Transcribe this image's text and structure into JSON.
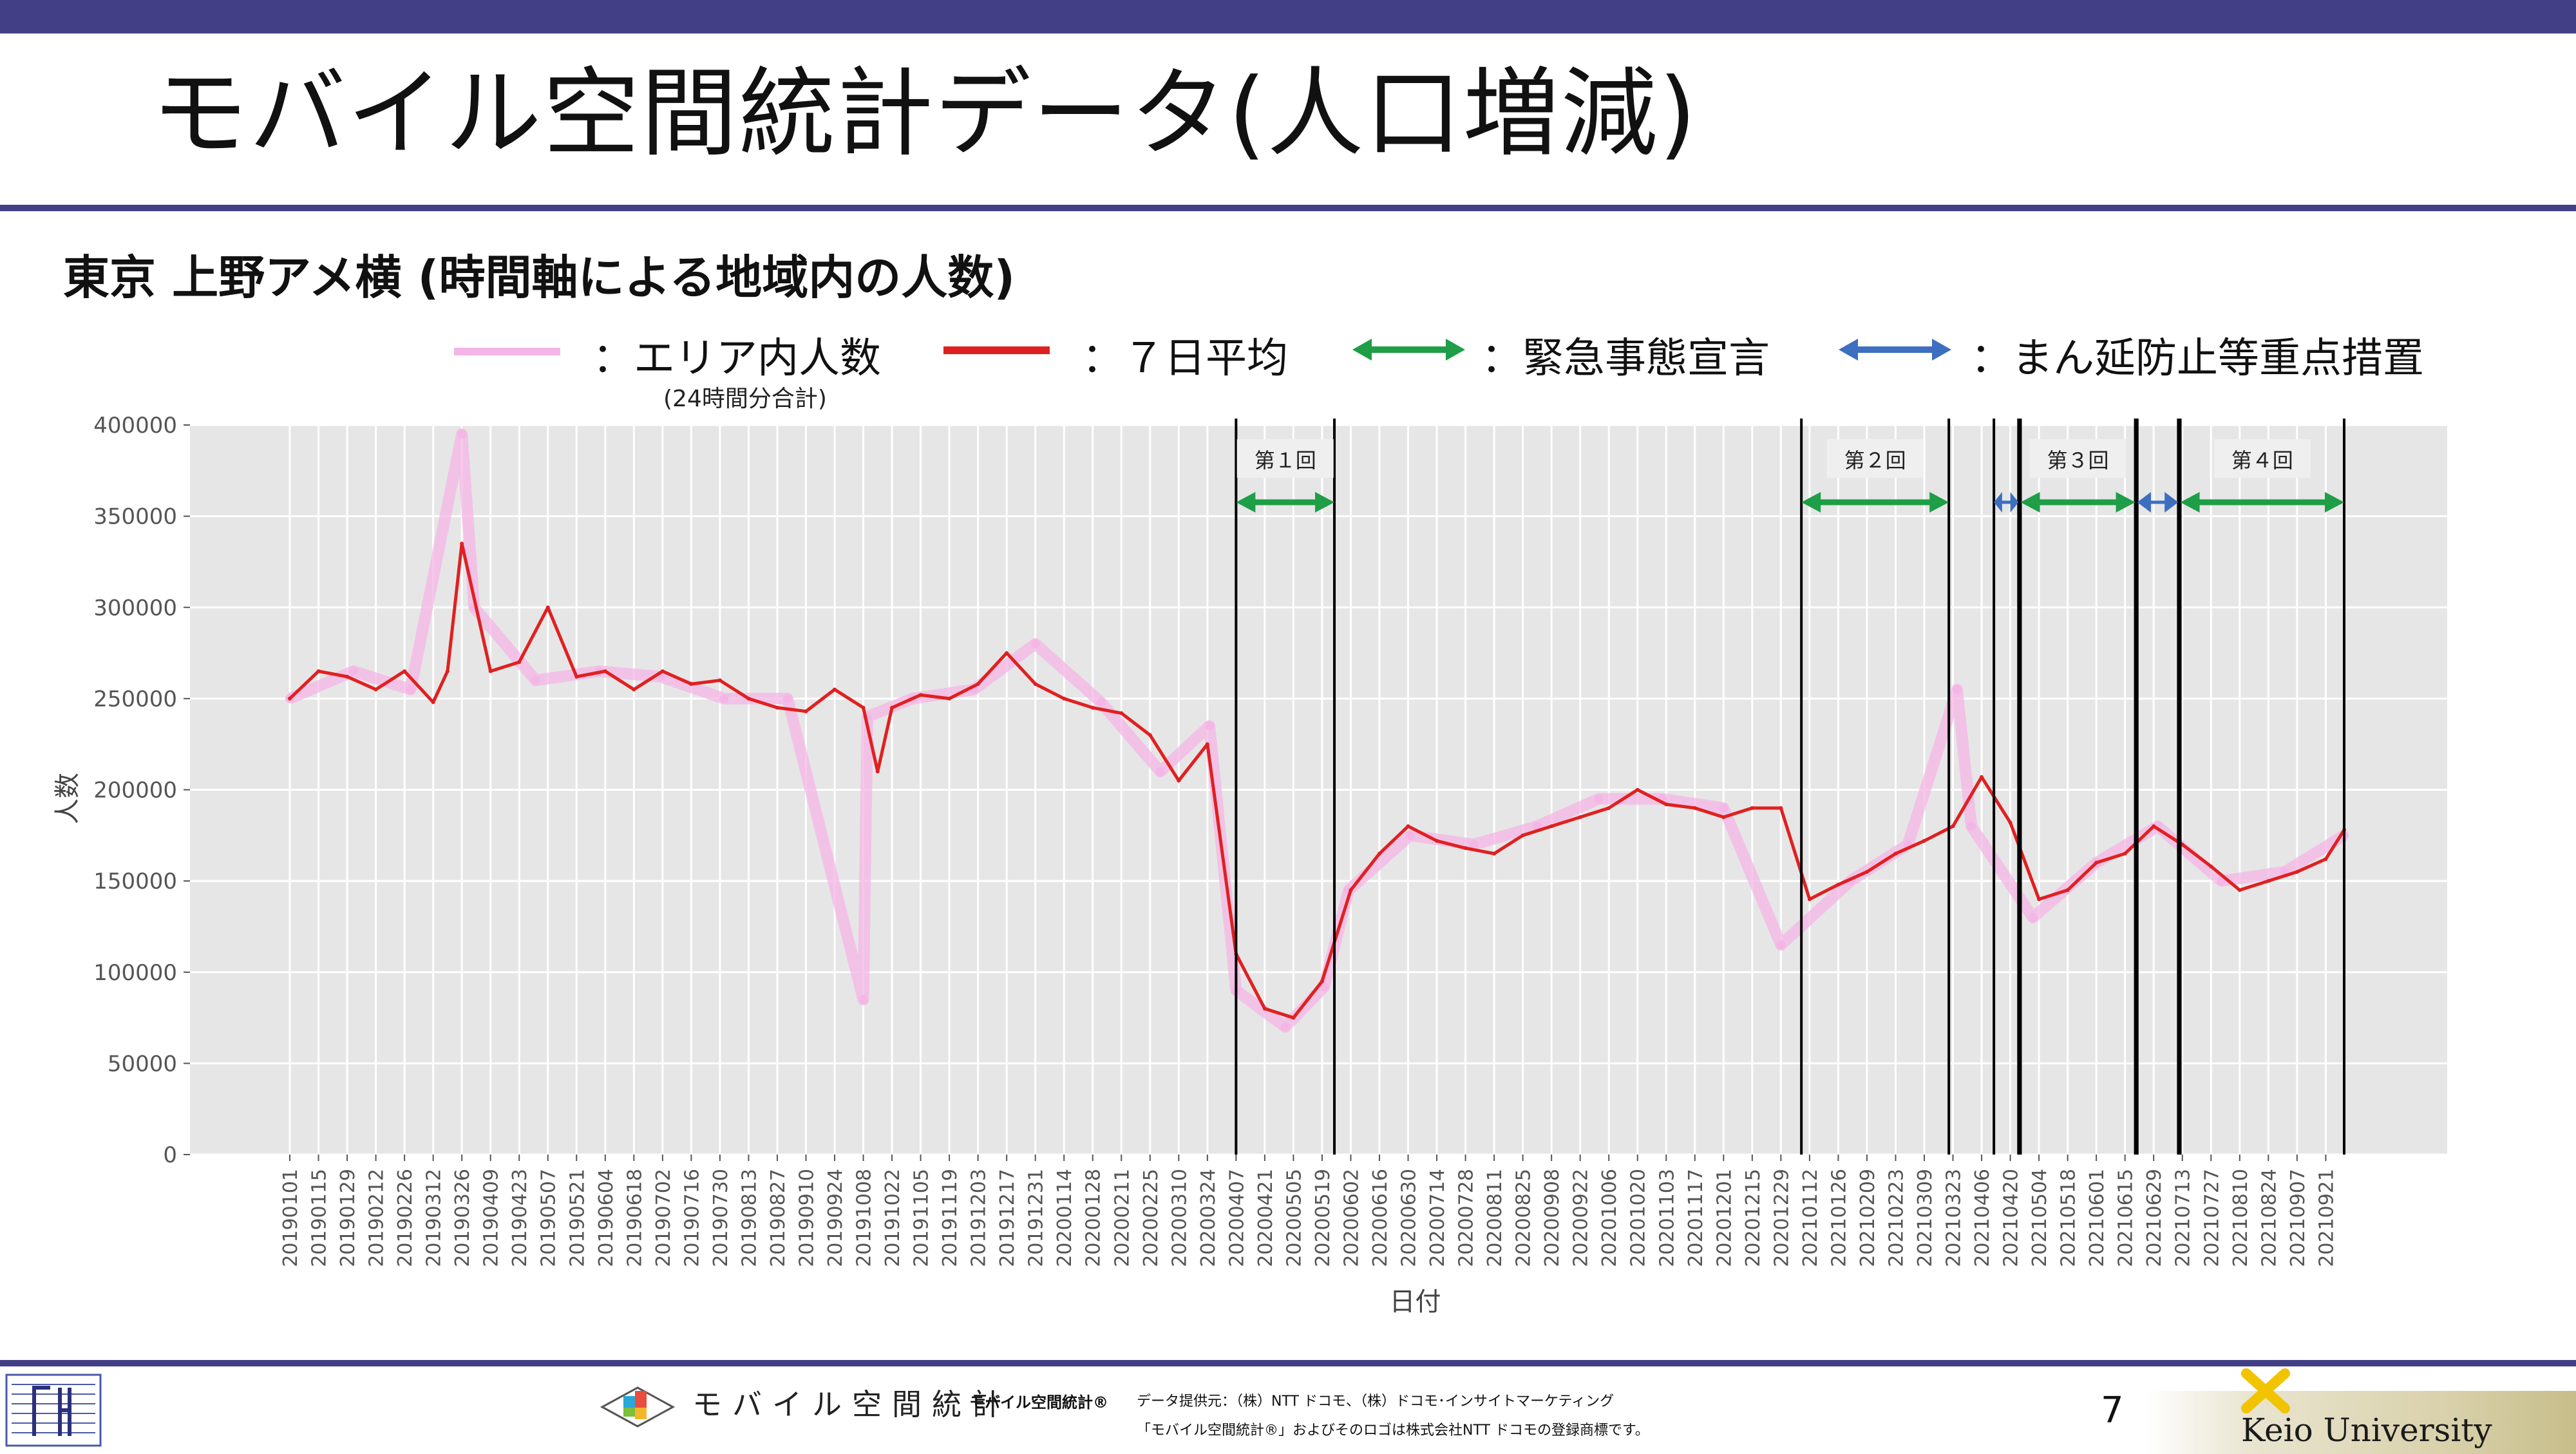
{
  "slide": {
    "title": "モバイル空間統計データ(人口増減)",
    "subtitle": "東京 上野アメ横 (時間軸による地域内の人数)",
    "page_number": "7"
  },
  "legend": {
    "items": [
      {
        "label": "：エリア内人数",
        "color": "#f4b6e6",
        "type": "line"
      },
      {
        "label": "：７日平均",
        "color": "#e02020",
        "type": "line"
      },
      {
        "label": "：緊急事態宣言",
        "color": "#1e9e46",
        "type": "arrow"
      },
      {
        "label": "：まん延防止等重点措置",
        "color": "#3d6fc1",
        "type": "arrow"
      }
    ],
    "note": "(24時間分合計)"
  },
  "footer": {
    "brand": "モバイル空間統計",
    "mark": "モバイル空間統計®",
    "source_line1": "データ提供元：（株）NTT ドコモ、（株）ドコモ･インサイトマーケティング",
    "source_line2": "「モバイル空間統計®」およびそのロゴは株式会社NTT ドコモの登録商標です。",
    "university": "Keio University"
  },
  "chart_data": {
    "type": "line",
    "xlabel": "日付",
    "ylabel": "人数",
    "ylim": [
      0,
      400000
    ],
    "yticks": [
      0,
      50000,
      100000,
      150000,
      200000,
      250000,
      300000,
      350000,
      400000
    ],
    "ytick_labels": [
      "0",
      "50000",
      "100000",
      "150000",
      "200000",
      "250000",
      "300000",
      "350000",
      "400000"
    ],
    "x_tick_labels": [
      "20190101",
      "20190115",
      "20190129",
      "20190212",
      "20190226",
      "20190312",
      "20190326",
      "20190409",
      "20190423",
      "20190507",
      "20190521",
      "20190604",
      "20190618",
      "20190702",
      "20190716",
      "20190730",
      "20190813",
      "20190827",
      "20190910",
      "20190924",
      "20191008",
      "20191022",
      "20191105",
      "20191119",
      "20191203",
      "20191217",
      "20191231",
      "20200114",
      "20200128",
      "20200211",
      "20200225",
      "20200310",
      "20200324",
      "20200407",
      "20200421",
      "20200505",
      "20200519",
      "20200602",
      "20200616",
      "20200630",
      "20200714",
      "20200728",
      "20200811",
      "20200825",
      "20200908",
      "20200922",
      "20201006",
      "20201020",
      "20201103",
      "20201117",
      "20201201",
      "20201215",
      "20201229",
      "20210112",
      "20210126",
      "20210209",
      "20210223",
      "20210309",
      "20210323",
      "20210406",
      "20210420",
      "20210504",
      "20210518",
      "20210601",
      "20210615",
      "20210629",
      "20210713",
      "20210727",
      "20210810",
      "20210824",
      "20210907",
      "20210921"
    ],
    "grid": true,
    "series": [
      {
        "name": "エリア内人数",
        "color": "#f4b6e6",
        "x": [
          "20190101",
          "20190201",
          "20190301",
          "20190326",
          "20190401",
          "20190501",
          "20190601",
          "20190701",
          "20190801",
          "20190901",
          "20191008",
          "20191010",
          "20191101",
          "20191201",
          "20191231",
          "20200201",
          "20200301",
          "20200325",
          "20200407",
          "20200501",
          "20200520",
          "20200601",
          "20200701",
          "20200801",
          "20200901",
          "20201001",
          "20201101",
          "20201201",
          "20201229",
          "20210201",
          "20210301",
          "20210325",
          "20210401",
          "20210501",
          "20210601",
          "20210701",
          "20210801",
          "20210901",
          "20210930"
        ],
        "values": [
          250000,
          265000,
          255000,
          395000,
          300000,
          260000,
          265000,
          262000,
          250000,
          250000,
          85000,
          240000,
          250000,
          255000,
          280000,
          248000,
          210000,
          235000,
          90000,
          70000,
          92000,
          145000,
          175000,
          170000,
          180000,
          195000,
          195000,
          190000,
          115000,
          150000,
          170000,
          255000,
          180000,
          130000,
          160000,
          180000,
          150000,
          155000,
          175000
        ]
      },
      {
        "name": "７日平均",
        "color": "#e02020",
        "x": [
          "20190101",
          "20190115",
          "20190129",
          "20190212",
          "20190226",
          "20190312",
          "20190319",
          "20190326",
          "20190409",
          "20190423",
          "20190507",
          "20190521",
          "20190604",
          "20190618",
          "20190702",
          "20190716",
          "20190730",
          "20190813",
          "20190827",
          "20190910",
          "20190924",
          "20191008",
          "20191015",
          "20191022",
          "20191105",
          "20191119",
          "20191203",
          "20191217",
          "20191231",
          "20200114",
          "20200128",
          "20200211",
          "20200225",
          "20200310",
          "20200324",
          "20200407",
          "20200421",
          "20200505",
          "20200519",
          "20200602",
          "20200616",
          "20200630",
          "20200714",
          "20200728",
          "20200811",
          "20200825",
          "20200908",
          "20200922",
          "20201006",
          "20201020",
          "20201103",
          "20201117",
          "20201201",
          "20201215",
          "20201229",
          "20210112",
          "20210126",
          "20210209",
          "20210223",
          "20210309",
          "20210323",
          "20210406",
          "20210420",
          "20210504",
          "20210518",
          "20210601",
          "20210615",
          "20210629",
          "20210713",
          "20210727",
          "20210810",
          "20210824",
          "20210907",
          "20210921",
          "20210930"
        ],
        "values": [
          250000,
          265000,
          262000,
          255000,
          265000,
          248000,
          265000,
          335000,
          265000,
          270000,
          300000,
          262000,
          265000,
          255000,
          265000,
          258000,
          260000,
          250000,
          245000,
          243000,
          255000,
          245000,
          210000,
          245000,
          252000,
          250000,
          258000,
          275000,
          258000,
          250000,
          245000,
          242000,
          230000,
          205000,
          225000,
          110000,
          80000,
          75000,
          95000,
          145000,
          165000,
          180000,
          172000,
          168000,
          165000,
          175000,
          180000,
          185000,
          190000,
          200000,
          192000,
          190000,
          185000,
          190000,
          190000,
          140000,
          148000,
          155000,
          165000,
          172000,
          180000,
          207000,
          182000,
          140000,
          145000,
          160000,
          165000,
          180000,
          170000,
          158000,
          145000,
          150000,
          155000,
          162000,
          178000
        ]
      }
    ],
    "annotations": [
      {
        "label": "第１回",
        "type": "緊急事態宣言",
        "start": "20200407",
        "end": "20200525"
      },
      {
        "label": "第２回",
        "type": "緊急事態宣言",
        "start": "20210108",
        "end": "20210321"
      },
      {
        "type": "まん延防止等重点措置",
        "start": "20210412",
        "end": "20210424"
      },
      {
        "label": "第３回",
        "type": "緊急事態宣言",
        "start": "20210425",
        "end": "20210620"
      },
      {
        "type": "まん延防止等重点措置",
        "start": "20210621",
        "end": "20210711"
      },
      {
        "label": "第４回",
        "type": "緊急事態宣言",
        "start": "20210712",
        "end": "20210930"
      }
    ]
  }
}
